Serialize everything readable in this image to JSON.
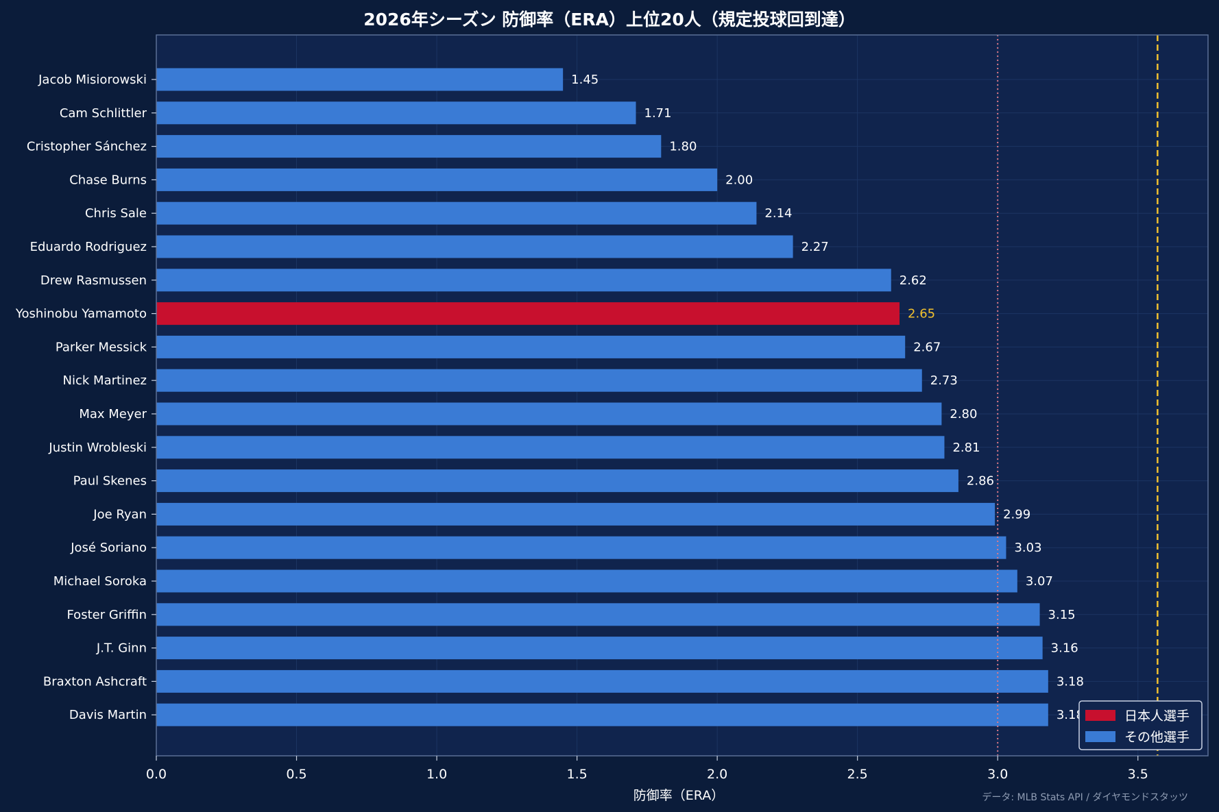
{
  "chart_data": {
    "type": "bar",
    "orientation": "horizontal",
    "title": "2026年シーズン 防御率（ERA）上位20人（規定投球回到達）",
    "xlabel": "防御率（ERA）",
    "ylabel": "",
    "xlim": [
      0,
      3.75
    ],
    "xticks": [
      "0.0",
      "0.5",
      "1.0",
      "1.5",
      "2.0",
      "2.5",
      "3.0",
      "3.5"
    ],
    "grid": true,
    "categories": [
      "Jacob Misiorowski",
      "Cam Schlittler",
      "Cristopher Sánchez",
      "Chase Burns",
      "Chris Sale",
      "Eduardo Rodriguez",
      "Drew Rasmussen",
      "Yoshinobu Yamamoto",
      "Parker Messick",
      "Nick Martinez",
      "Max Meyer",
      "Justin Wrobleski",
      "Paul Skenes",
      "Joe Ryan",
      "José Soriano",
      "Michael Soroka",
      "Foster Griffin",
      "J.T. Ginn",
      "Braxton Ashcraft",
      "Davis Martin"
    ],
    "values": [
      1.45,
      1.71,
      1.8,
      2.0,
      2.14,
      2.27,
      2.62,
      2.65,
      2.67,
      2.73,
      2.8,
      2.81,
      2.86,
      2.99,
      3.03,
      3.07,
      3.15,
      3.16,
      3.18,
      3.18
    ],
    "value_labels": [
      "1.45",
      "1.71",
      "1.80",
      "2.00",
      "2.14",
      "2.27",
      "2.62",
      "2.65",
      "2.67",
      "2.73",
      "2.80",
      "2.81",
      "2.86",
      "2.99",
      "3.03",
      "3.07",
      "3.15",
      "3.16",
      "3.18",
      "3.18"
    ],
    "groups": [
      "other",
      "other",
      "other",
      "other",
      "other",
      "other",
      "other",
      "japanese",
      "other",
      "other",
      "other",
      "other",
      "other",
      "other",
      "other",
      "other",
      "other",
      "other",
      "other",
      "other"
    ],
    "reference_lines": [
      {
        "value": 3.0,
        "style": "dotted",
        "color": "#e07a86"
      },
      {
        "value": 3.57,
        "style": "dashed",
        "color": "#f2c12e"
      }
    ],
    "legend": {
      "placement": "bottom-right",
      "entries": [
        {
          "label": "日本人選手",
          "color": "#c8102e"
        },
        {
          "label": "その他選手",
          "color": "#3a7bd5"
        }
      ]
    },
    "source": "データ: MLB Stats API / ダイヤモンドスタッツ"
  },
  "colors": {
    "background": "#0b1c3a",
    "plot_background": "#10244d",
    "japanese": "#c8102e",
    "other": "#3a7bd5",
    "highlight_label": "#f2c12e",
    "grid": "#1c3563",
    "axis": "#5a6f96"
  }
}
